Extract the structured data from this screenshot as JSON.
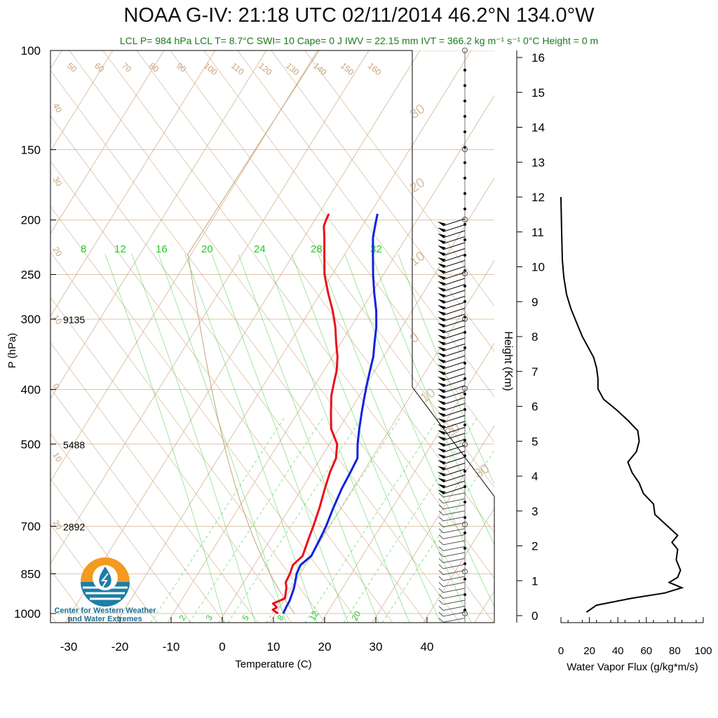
{
  "title": "NOAA G-IV: 21:18 UTC 02/11/2014  46.2°N 134.0°W",
  "subtitle": "LCL P= 984 hPa  LCL T= 8.7°C  SWI= 10  Cape= 0 J  IWV = 22.15 mm  IVT = 366.2 kg m⁻¹ s⁻¹  0°C Height = 0 m",
  "logo": {
    "line1": "Center for Western Weather",
    "line2": "and Water Extremes"
  },
  "colors": {
    "temperature": "#e8111a",
    "dewpoint": "#1022e0",
    "isotherm": "#c8a27a",
    "mixing_ratio": "#33cc33",
    "flux": "#000000"
  },
  "chart_data": [
    {
      "type": "line",
      "subtype": "skew-T log-P",
      "xlabel": "Temperature (C)",
      "ylabel": "P (hPa)",
      "xticks": [
        -30,
        -20,
        -10,
        0,
        10,
        20,
        30,
        40
      ],
      "yticks": [
        100,
        150,
        200,
        250,
        300,
        400,
        500,
        700,
        850,
        1000
      ],
      "ylim": [
        1000,
        100
      ],
      "log_y": true,
      "height_labels": [
        {
          "p": 300,
          "label": "9135"
        },
        {
          "p": 500,
          "label": "5488"
        },
        {
          "p": 700,
          "label": "2892"
        }
      ],
      "isotherm_labels": [
        "50",
        "60",
        "70",
        "80",
        "90",
        "100",
        "110",
        "120",
        "130",
        "140",
        "150",
        "160"
      ],
      "dry_adiabat_labels": [
        "40",
        "30",
        "20",
        "10",
        "0",
        "10",
        "20"
      ],
      "right_labels": [
        "30",
        "20",
        "10",
        "0",
        "10",
        "20",
        "30"
      ],
      "mixing_ratio_labels_top": [
        "8",
        "12",
        "16",
        "20",
        "24",
        "28",
        "32"
      ],
      "mixing_ratio_labels_bottom": [
        "2",
        "3",
        "5",
        "8",
        "12",
        "20"
      ],
      "series": [
        {
          "name": "temperature",
          "points": [
            {
              "p": 1000,
              "t": 10.5
            },
            {
              "p": 985,
              "t": 9.0
            },
            {
              "p": 975,
              "t": 9.5
            },
            {
              "p": 960,
              "t": 8.3
            },
            {
              "p": 940,
              "t": 10.0
            },
            {
              "p": 920,
              "t": 9.5
            },
            {
              "p": 900,
              "t": 9.0
            },
            {
              "p": 880,
              "t": 8.2
            },
            {
              "p": 850,
              "t": 8.0
            },
            {
              "p": 820,
              "t": 7.5
            },
            {
              "p": 790,
              "t": 8.3
            },
            {
              "p": 760,
              "t": 7.8
            },
            {
              "p": 730,
              "t": 7.3
            },
            {
              "p": 700,
              "t": 6.8
            },
            {
              "p": 650,
              "t": 5.8
            },
            {
              "p": 600,
              "t": 4.5
            },
            {
              "p": 560,
              "t": 3.5
            },
            {
              "p": 530,
              "t": 3.0
            },
            {
              "p": 500,
              "t": 1.5
            },
            {
              "p": 470,
              "t": -1.5
            },
            {
              "p": 440,
              "t": -3.5
            },
            {
              "p": 410,
              "t": -5.5
            },
            {
              "p": 390,
              "t": -6.5
            },
            {
              "p": 370,
              "t": -7.5
            },
            {
              "p": 350,
              "t": -9.0
            },
            {
              "p": 330,
              "t": -11.0
            },
            {
              "p": 310,
              "t": -13.0
            },
            {
              "p": 290,
              "t": -15.5
            },
            {
              "p": 270,
              "t": -18.5
            },
            {
              "p": 250,
              "t": -21.5
            },
            {
              "p": 230,
              "t": -24.0
            },
            {
              "p": 215,
              "t": -26.0
            },
            {
              "p": 205,
              "t": -27.5
            },
            {
              "p": 200,
              "t": -27.8
            },
            {
              "p": 195,
              "t": -28.0
            }
          ]
        },
        {
          "name": "dewpoint",
          "points": [
            {
              "p": 1000,
              "t": 11.5
            },
            {
              "p": 975,
              "t": 11.3
            },
            {
              "p": 950,
              "t": 11.2
            },
            {
              "p": 920,
              "t": 10.8
            },
            {
              "p": 900,
              "t": 10.5
            },
            {
              "p": 870,
              "t": 9.8
            },
            {
              "p": 850,
              "t": 9.3
            },
            {
              "p": 820,
              "t": 9.0
            },
            {
              "p": 790,
              "t": 10.0
            },
            {
              "p": 760,
              "t": 9.8
            },
            {
              "p": 720,
              "t": 9.5
            },
            {
              "p": 700,
              "t": 9.3
            },
            {
              "p": 650,
              "t": 8.5
            },
            {
              "p": 600,
              "t": 7.8
            },
            {
              "p": 560,
              "t": 7.5
            },
            {
              "p": 530,
              "t": 7.2
            },
            {
              "p": 500,
              "t": 5.5
            },
            {
              "p": 470,
              "t": 4.0
            },
            {
              "p": 440,
              "t": 2.5
            },
            {
              "p": 410,
              "t": 1.0
            },
            {
              "p": 390,
              "t": 0.0
            },
            {
              "p": 370,
              "t": -1.0
            },
            {
              "p": 350,
              "t": -2.0
            },
            {
              "p": 330,
              "t": -3.5
            },
            {
              "p": 310,
              "t": -5.0
            },
            {
              "p": 290,
              "t": -7.0
            },
            {
              "p": 270,
              "t": -9.5
            },
            {
              "p": 250,
              "t": -12.0
            },
            {
              "p": 230,
              "t": -14.5
            },
            {
              "p": 215,
              "t": -16.5
            },
            {
              "p": 205,
              "t": -17.5
            },
            {
              "p": 200,
              "t": -18.0
            },
            {
              "p": 195,
              "t": -18.5
            }
          ]
        }
      ]
    },
    {
      "type": "line",
      "xlabel": "Water Vapor Flux (g/kg*m/s)",
      "ylabel": "Height (Km)",
      "xlim": [
        0,
        100
      ],
      "ylim": [
        0,
        16.5
      ],
      "xticks": [
        0,
        20,
        40,
        60,
        80,
        100
      ],
      "yticks": [
        0,
        1,
        2,
        3,
        4,
        5,
        6,
        7,
        8,
        9,
        10,
        11,
        12,
        13,
        14,
        15,
        16
      ],
      "series": [
        {
          "name": "",
          "points": [
            {
              "z": 0.1,
              "f": 18
            },
            {
              "z": 0.3,
              "f": 25
            },
            {
              "z": 0.5,
              "f": 50
            },
            {
              "z": 0.65,
              "f": 73
            },
            {
              "z": 0.8,
              "f": 85
            },
            {
              "z": 0.95,
              "f": 76
            },
            {
              "z": 1.1,
              "f": 82
            },
            {
              "z": 1.3,
              "f": 84
            },
            {
              "z": 1.6,
              "f": 81
            },
            {
              "z": 1.9,
              "f": 82
            },
            {
              "z": 2.1,
              "f": 78
            },
            {
              "z": 2.3,
              "f": 82
            },
            {
              "z": 2.6,
              "f": 74
            },
            {
              "z": 2.9,
              "f": 66
            },
            {
              "z": 3.2,
              "f": 65
            },
            {
              "z": 3.5,
              "f": 58
            },
            {
              "z": 3.8,
              "f": 55
            },
            {
              "z": 4.1,
              "f": 50
            },
            {
              "z": 4.4,
              "f": 47
            },
            {
              "z": 4.7,
              "f": 53
            },
            {
              "z": 5.0,
              "f": 55
            },
            {
              "z": 5.3,
              "f": 54
            },
            {
              "z": 5.6,
              "f": 47
            },
            {
              "z": 5.9,
              "f": 39
            },
            {
              "z": 6.2,
              "f": 30
            },
            {
              "z": 6.5,
              "f": 26
            },
            {
              "z": 6.8,
              "f": 26
            },
            {
              "z": 7.1,
              "f": 25
            },
            {
              "z": 7.4,
              "f": 23
            },
            {
              "z": 7.7,
              "f": 19
            },
            {
              "z": 8.0,
              "f": 15
            },
            {
              "z": 8.4,
              "f": 11
            },
            {
              "z": 8.8,
              "f": 7
            },
            {
              "z": 9.2,
              "f": 4
            },
            {
              "z": 9.7,
              "f": 2
            },
            {
              "z": 10.2,
              "f": 1
            },
            {
              "z": 11.0,
              "f": 0.5
            },
            {
              "z": 12.0,
              "f": 0
            }
          ]
        }
      ]
    }
  ]
}
